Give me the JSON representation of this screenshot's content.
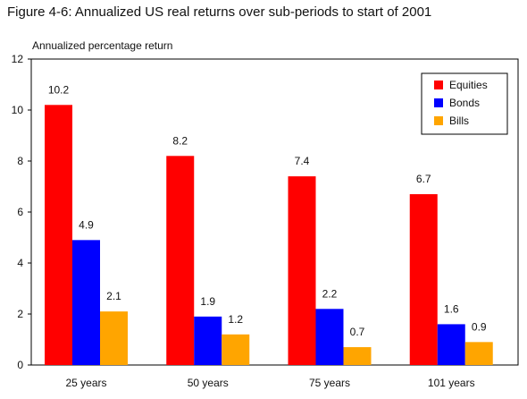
{
  "title": "Figure 4-6: Annualized US real returns over sub-periods to start of 2001",
  "chart_data": {
    "type": "bar",
    "ylabel": "Annualized percentage return",
    "xlabel": "",
    "ylim": [
      0,
      12
    ],
    "yticks": [
      "0",
      "2",
      "4",
      "6",
      "8",
      "10",
      "12"
    ],
    "grid": false,
    "legend_position": "top-right",
    "categories": [
      "25 years",
      "50 years",
      "75 years",
      "101 years"
    ],
    "series": [
      {
        "name": "Equities",
        "color": "#ff0000",
        "values": [
          10.2,
          8.2,
          7.4,
          6.7
        ],
        "labels": [
          "10.2",
          "8.2",
          "7.4",
          "6.7"
        ]
      },
      {
        "name": "Bonds",
        "color": "#0000ff",
        "values": [
          4.9,
          1.9,
          2.2,
          1.6
        ],
        "labels": [
          "4.9",
          "1.9",
          "2.2",
          "1.6"
        ]
      },
      {
        "name": "Bills",
        "color": "#ffa500",
        "values": [
          2.1,
          1.2,
          0.7,
          0.9
        ],
        "labels": [
          "2.1",
          "1.2",
          "0.7",
          "0.9"
        ]
      }
    ]
  }
}
